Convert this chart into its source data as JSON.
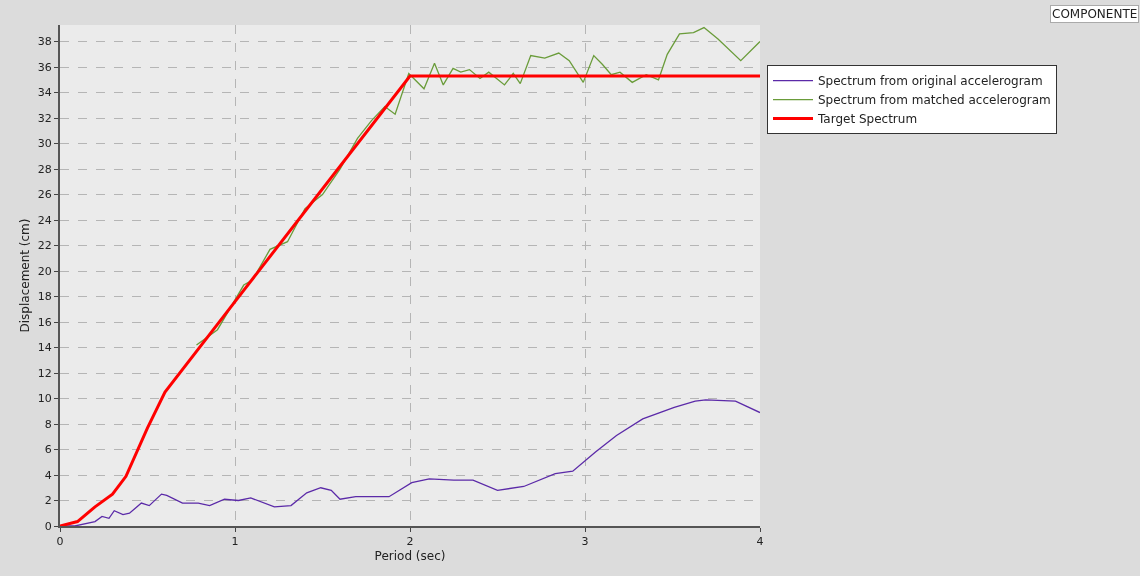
{
  "chart_data": {
    "type": "line",
    "xlabel": "Period (sec)",
    "ylabel": "Displacement (cm)",
    "xlim": [
      0,
      4
    ],
    "xticks": [
      0,
      1,
      2,
      3,
      4
    ],
    "ylim": [
      0,
      39.3
    ],
    "yticks": [
      0,
      2,
      4,
      6,
      8,
      10,
      12,
      14,
      16,
      18,
      20,
      22,
      24,
      26,
      28,
      30,
      32,
      34,
      36,
      38
    ],
    "grid": true,
    "legend": "top right",
    "marker": "none",
    "line_style": "solid",
    "annotations": [
      "COMPONENTE"
    ],
    "series": [
      {
        "name": "Spectrum from original accelerogram",
        "color": "#5b2aa8",
        "x": [
          0,
          0.085,
          0.2,
          0.24,
          0.28,
          0.31,
          0.36,
          0.397,
          0.465,
          0.51,
          0.58,
          0.61,
          0.7,
          0.79,
          0.855,
          0.94,
          1.02,
          1.09,
          1.225,
          1.32,
          1.41,
          1.49,
          1.55,
          1.6,
          1.69,
          1.88,
          2.01,
          2.11,
          2.25,
          2.36,
          2.5,
          2.65,
          2.83,
          2.93,
          3.06,
          3.18,
          3.33,
          3.51,
          3.63,
          3.69,
          3.86,
          4.0
        ],
        "values": [
          0,
          0,
          0.35,
          0.75,
          0.6,
          1.2,
          0.9,
          1.0,
          1.8,
          1.6,
          2.5,
          2.4,
          1.8,
          1.8,
          1.6,
          2.1,
          2.0,
          2.2,
          1.5,
          1.6,
          2.6,
          3.0,
          2.8,
          2.1,
          2.3,
          2.3,
          3.4,
          3.7,
          3.6,
          3.6,
          2.8,
          3.1,
          4.1,
          4.3,
          5.8,
          7.1,
          8.4,
          9.3,
          9.8,
          9.9,
          9.8,
          8.9
        ]
      },
      {
        "name": "Spectrum from matched accelerogram",
        "color": "#6a9c3a",
        "x": [
          0.78,
          0.9,
          1.05,
          1.1,
          1.2,
          1.3,
          1.4,
          1.5,
          1.6,
          1.7,
          1.78,
          1.856,
          1.915,
          1.993,
          2.08,
          2.14,
          2.19,
          2.246,
          2.29,
          2.34,
          2.4,
          2.45,
          2.54,
          2.59,
          2.63,
          2.69,
          2.77,
          2.85,
          2.91,
          2.99,
          3.05,
          3.1,
          3.15,
          3.2,
          3.27,
          3.35,
          3.42,
          3.47,
          3.54,
          3.62,
          3.68,
          3.76,
          3.89,
          4.0
        ],
        "values": [
          14.2,
          15.4,
          18.9,
          19.3,
          21.7,
          22.3,
          24.9,
          26.0,
          28.0,
          30.4,
          31.8,
          32.9,
          32.3,
          35.5,
          34.3,
          36.3,
          34.6,
          35.9,
          35.6,
          35.8,
          35.1,
          35.6,
          34.6,
          35.5,
          34.7,
          36.9,
          36.7,
          37.1,
          36.5,
          34.8,
          36.9,
          36.2,
          35.4,
          35.6,
          34.8,
          35.4,
          35.0,
          37.0,
          38.6,
          38.7,
          39.1,
          38.2,
          36.5,
          38.0
        ]
      },
      {
        "name": "Target Spectrum",
        "color": "#ff0000",
        "x": [
          0,
          0.1,
          0.2,
          0.3,
          0.377,
          0.5,
          0.6,
          1.0,
          2.0,
          4.0
        ],
        "values": [
          0,
          0.35,
          1.5,
          2.5,
          3.9,
          7.7,
          10.5,
          17.6,
          35.3,
          35.3
        ]
      }
    ]
  }
}
